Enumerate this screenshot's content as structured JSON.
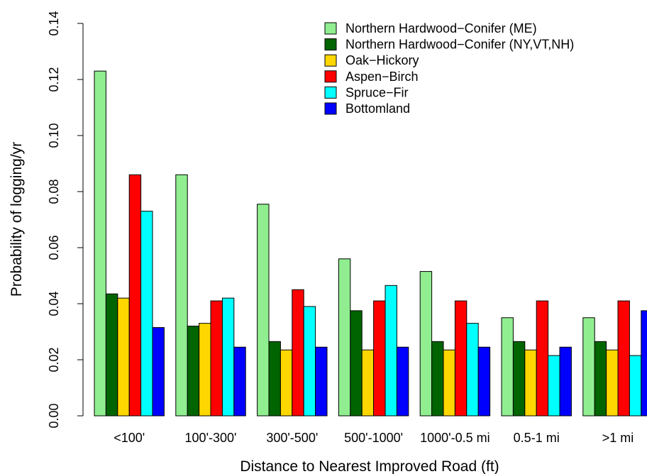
{
  "chart_data": {
    "type": "bar",
    "title": "",
    "xlabel": "Distance to Nearest Improved Road (ft)",
    "ylabel": "Probability of logging/yr",
    "ylim": [
      0,
      0.14
    ],
    "yticks": [
      "0.00",
      "0.02",
      "0.04",
      "0.06",
      "0.08",
      "0.10",
      "0.12",
      "0.14"
    ],
    "ytick_values": [
      0,
      0.02,
      0.04,
      0.06,
      0.08,
      0.1,
      0.12,
      0.14
    ],
    "categories": [
      "<100'",
      "100'-300'",
      "300'-500'",
      "500'-1000'",
      "1000'-0.5 mi",
      "0.5-1 mi",
      ">1 mi"
    ],
    "grid": false,
    "legend_position": "top-right",
    "series": [
      {
        "name": "Northern Hardwood−Conifer (ME)",
        "color": "#90ee90",
        "values": [
          0.123,
          0.086,
          0.0755,
          0.056,
          0.0515,
          0.035,
          0.035
        ]
      },
      {
        "name": "Northern Hardwood−Conifer (NY,VT,NH)",
        "color": "#006400",
        "values": [
          0.0435,
          0.032,
          0.0265,
          0.0375,
          0.0265,
          0.0265,
          0.0265
        ]
      },
      {
        "name": "Oak−Hickory",
        "color": "#ffd700",
        "values": [
          0.042,
          0.033,
          0.0235,
          0.0235,
          0.0235,
          0.0235,
          0.0235
        ]
      },
      {
        "name": "Aspen−Birch",
        "color": "#ff0000",
        "values": [
          0.086,
          0.041,
          0.045,
          0.041,
          0.041,
          0.041,
          0.041
        ]
      },
      {
        "name": "Spruce−Fir",
        "color": "#00ffff",
        "values": [
          0.073,
          0.042,
          0.039,
          0.0465,
          0.033,
          0.0215,
          0.0215
        ]
      },
      {
        "name": "Bottomland",
        "color": "#0000ff",
        "values": [
          0.0315,
          0.0245,
          0.0245,
          0.0245,
          0.0245,
          0.0245,
          0.0375
        ]
      }
    ]
  }
}
